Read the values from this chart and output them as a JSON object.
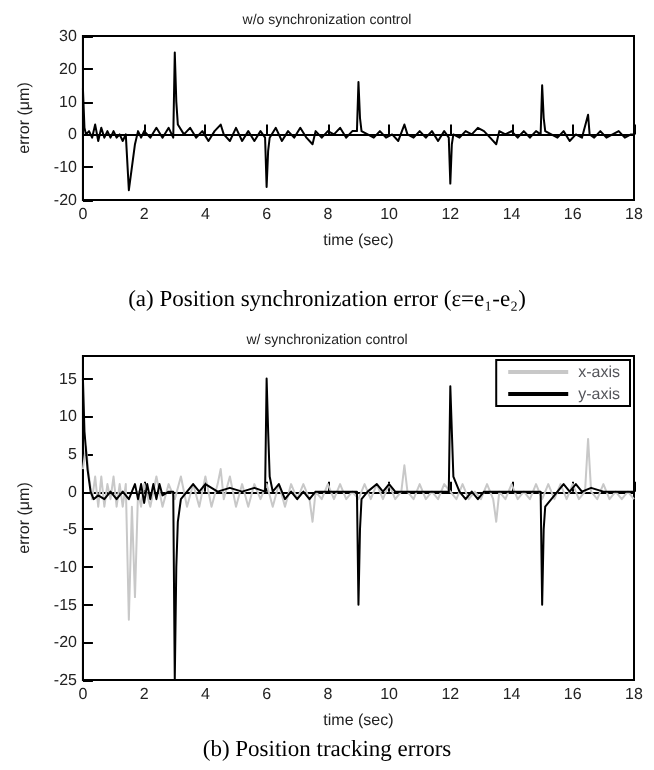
{
  "chart_data": [
    {
      "type": "line",
      "title": "w/o synchronization control",
      "xlabel": "time (sec)",
      "ylabel": "error (μm)",
      "annotations": [
        "(a) Position synchronization error (ε=e₁-e₂)"
      ],
      "xlim": [
        0,
        18
      ],
      "xticks": [
        0,
        2,
        4,
        6,
        8,
        10,
        12,
        14,
        16,
        18
      ],
      "ylim": [
        -20,
        30
      ],
      "yticks": [
        -20,
        -10,
        0,
        10,
        20,
        30
      ],
      "legend": false,
      "series": [
        {
          "color": "#000000",
          "x": [
            0,
            0.05,
            0.1,
            0.2,
            0.3,
            0.4,
            0.5,
            0.6,
            0.7,
            0.8,
            0.9,
            1.0,
            1.1,
            1.2,
            1.3,
            1.4,
            1.5,
            1.6,
            1.7,
            1.8,
            1.9,
            2.0,
            2.2,
            2.4,
            2.6,
            2.8,
            2.95,
            3.0,
            3.05,
            3.1,
            3.3,
            3.5,
            3.7,
            3.9,
            4.1,
            4.3,
            4.5,
            4.6,
            4.8,
            5.0,
            5.2,
            5.4,
            5.6,
            5.8,
            5.95,
            6.0,
            6.05,
            6.1,
            6.3,
            6.5,
            6.7,
            6.9,
            7.1,
            7.3,
            7.5,
            7.6,
            7.8,
            8.0,
            8.2,
            8.4,
            8.6,
            8.8,
            8.95,
            9.0,
            9.05,
            9.1,
            9.3,
            9.5,
            9.7,
            9.9,
            10.1,
            10.3,
            10.5,
            10.6,
            10.8,
            11.0,
            11.2,
            11.4,
            11.6,
            11.8,
            11.95,
            12.0,
            12.05,
            12.1,
            12.3,
            12.5,
            12.7,
            12.9,
            13.1,
            13.3,
            13.5,
            13.6,
            13.8,
            14.0,
            14.2,
            14.4,
            14.6,
            14.8,
            14.95,
            15.0,
            15.05,
            15.1,
            15.3,
            15.5,
            15.7,
            15.9,
            16.1,
            16.3,
            16.5,
            16.55,
            16.7,
            16.9,
            17.1,
            17.3,
            17.5,
            17.7,
            17.9,
            18
          ],
          "values": [
            14,
            2,
            0,
            1,
            -1,
            3,
            -2,
            2,
            -1,
            1,
            -1,
            1,
            -1,
            0,
            -2,
            0,
            -17,
            -10,
            -3,
            1,
            -1,
            1,
            -1,
            2,
            -1,
            2,
            -1,
            25,
            10,
            3,
            0,
            2,
            -1,
            1,
            -2,
            1,
            3,
            0,
            -2,
            2,
            -2,
            1,
            -2,
            1,
            -1,
            -16,
            -5,
            -1,
            2,
            -2,
            1,
            -1,
            2,
            -1,
            -3,
            1,
            -1,
            1,
            0,
            2,
            -1,
            1,
            1,
            16,
            5,
            1,
            0,
            -1,
            1,
            -1,
            0,
            -2,
            3,
            0,
            -1,
            1,
            -1,
            1,
            -2,
            1,
            -1,
            -15,
            -3,
            0,
            -1,
            1,
            0,
            2,
            1,
            -1,
            -3,
            1,
            0,
            1,
            -1,
            1,
            -1,
            1,
            0,
            15,
            5,
            1,
            0,
            -1,
            1,
            -2,
            0,
            -1,
            6,
            0,
            -1,
            1,
            -1,
            0,
            1,
            -1,
            0,
            0
          ]
        }
      ]
    },
    {
      "type": "line",
      "title": "w/ synchronization control",
      "xlabel": "time (sec)",
      "ylabel": "error (μm)",
      "annotations": [
        "(b) Position tracking errors"
      ],
      "xlim": [
        0,
        18
      ],
      "xticks": [
        0,
        2,
        4,
        6,
        8,
        10,
        12,
        14,
        16,
        18
      ],
      "ylim": [
        -25,
        18
      ],
      "yticks": [
        -25,
        -20,
        -15,
        -10,
        -5,
        0,
        5,
        10,
        15
      ],
      "legend": "top right",
      "series": [
        {
          "name": "x-axis",
          "color": "#c8c8c8",
          "x": [
            0,
            0.1,
            0.2,
            0.3,
            0.4,
            0.5,
            0.6,
            0.7,
            0.8,
            0.9,
            1.0,
            1.1,
            1.2,
            1.3,
            1.4,
            1.5,
            1.6,
            1.7,
            1.8,
            1.9,
            2.0,
            2.2,
            2.4,
            2.6,
            2.8,
            3.0,
            3.2,
            3.4,
            3.6,
            3.8,
            4.0,
            4.2,
            4.4,
            4.5,
            4.6,
            4.8,
            5.0,
            5.2,
            5.4,
            5.6,
            5.8,
            6.0,
            6.2,
            6.4,
            6.6,
            6.8,
            7.0,
            7.2,
            7.4,
            7.5,
            7.6,
            7.8,
            8.0,
            8.2,
            8.4,
            8.6,
            8.8,
            9.0,
            9.2,
            9.4,
            9.6,
            9.8,
            10.0,
            10.2,
            10.4,
            10.5,
            10.6,
            10.8,
            11.0,
            11.2,
            11.4,
            11.6,
            11.8,
            12.0,
            12.2,
            12.4,
            12.6,
            12.8,
            13.0,
            13.2,
            13.4,
            13.5,
            13.6,
            13.8,
            14.0,
            14.2,
            14.4,
            14.6,
            14.8,
            15.0,
            15.2,
            15.4,
            15.6,
            15.8,
            16.0,
            16.2,
            16.4,
            16.5,
            16.6,
            16.8,
            17.0,
            17.2,
            17.4,
            17.6,
            17.8,
            18
          ],
          "values": [
            3,
            6,
            2,
            -1,
            2,
            -2,
            2,
            -2,
            1,
            -1,
            2,
            -2,
            1,
            -2,
            1,
            -17,
            -2,
            -14,
            0,
            -2,
            1,
            -2,
            2,
            -2,
            1,
            -1,
            2,
            -2,
            1,
            -2,
            2,
            -2,
            1,
            3,
            -1,
            2,
            -2,
            1,
            -2,
            1,
            -1,
            1,
            -2,
            1,
            -2,
            1,
            -1,
            1,
            -1,
            -4,
            0,
            -1,
            1,
            -1,
            1,
            -1,
            0,
            -1,
            1,
            -1,
            1,
            -1,
            1,
            -1,
            0,
            3.5,
            0,
            -1,
            1,
            -1,
            0,
            -1,
            1,
            0,
            -1,
            1,
            -1,
            0,
            -1,
            1,
            -1,
            -4,
            0,
            -1,
            1,
            -1,
            0,
            -1,
            1,
            -1,
            1,
            -1,
            1,
            -1,
            1,
            -1,
            0,
            7,
            0,
            -1,
            1,
            -1,
            0,
            -1,
            0,
            -1
          ]
        },
        {
          "name": "y-axis",
          "color": "#000000",
          "x": [
            0,
            0.05,
            0.15,
            0.25,
            0.35,
            0.5,
            0.7,
            0.9,
            1.1,
            1.3,
            1.5,
            1.7,
            1.8,
            1.9,
            2.0,
            2.1,
            2.2,
            2.3,
            2.4,
            2.5,
            2.6,
            2.8,
            2.95,
            3.0,
            3.05,
            3.1,
            3.2,
            3.4,
            3.6,
            3.8,
            4.0,
            4.4,
            4.8,
            5.2,
            5.6,
            5.95,
            6.0,
            6.05,
            6.1,
            6.2,
            6.4,
            6.6,
            6.8,
            7.0,
            7.2,
            7.4,
            7.6,
            8.0,
            8.5,
            8.95,
            9.0,
            9.05,
            9.1,
            9.3,
            9.6,
            9.8,
            10.0,
            10.2,
            10.5,
            11.0,
            11.95,
            12.0,
            12.05,
            12.1,
            12.3,
            12.5,
            12.7,
            12.9,
            13.1,
            13.5,
            14.0,
            14.95,
            15.0,
            15.05,
            15.1,
            15.3,
            15.5,
            15.7,
            15.9,
            16.1,
            16.3,
            16.6,
            17.0,
            17.5,
            18
          ],
          "values": [
            15,
            8,
            3,
            0,
            -1,
            -0.5,
            -1,
            0,
            -1,
            0,
            -1,
            1,
            -1,
            1,
            -1.5,
            1,
            -1,
            1,
            -1,
            1,
            -0.5,
            0,
            0,
            -25,
            -10,
            -4,
            -1,
            0,
            1,
            0,
            1,
            0,
            0.5,
            0,
            0.5,
            0,
            15,
            8,
            2,
            0,
            1,
            -1,
            0,
            -1,
            0,
            -1,
            0,
            0,
            0,
            0,
            -15,
            -5,
            -1,
            0,
            1,
            0,
            1,
            0,
            0,
            0,
            0,
            14,
            8,
            2,
            0,
            -1,
            0,
            -1,
            0,
            0,
            0,
            0,
            -15,
            -5,
            -2,
            -1,
            0,
            1,
            0,
            1,
            0,
            0.5,
            0,
            0,
            0
          ]
        }
      ]
    }
  ]
}
